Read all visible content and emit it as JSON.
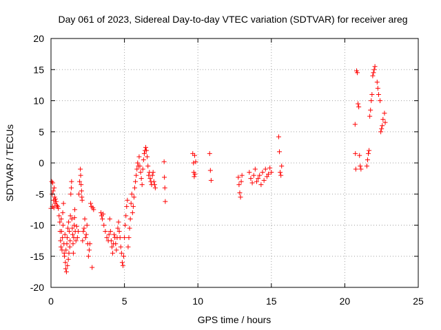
{
  "chart_data": {
    "type": "scatter",
    "title": "Day 061 of 2023, Sidereal Day-to-day VTEC variation (SDTVAR) for receiver areg",
    "xlabel": "GPS time / hours",
    "ylabel": "SDTVAR / TECUs",
    "xlim": [
      0,
      25
    ],
    "ylim": [
      -20,
      20
    ],
    "xticks": [
      0,
      5,
      10,
      15,
      20,
      25
    ],
    "yticks": [
      -20,
      -15,
      -10,
      -5,
      0,
      5,
      10,
      15,
      20
    ],
    "grid": true,
    "marker": "+",
    "color": "#ff0000",
    "series": [
      {
        "name": "SDTVAR",
        "points": [
          [
            0.0,
            -7.3
          ],
          [
            0.05,
            -3.0
          ],
          [
            0.08,
            -5.0
          ],
          [
            0.1,
            -7.0
          ],
          [
            0.12,
            -3.2
          ],
          [
            0.15,
            -4.5
          ],
          [
            0.18,
            -6.0
          ],
          [
            0.2,
            -7.2
          ],
          [
            0.22,
            -4.0
          ],
          [
            0.25,
            -5.5
          ],
          [
            0.28,
            -6.5
          ],
          [
            0.3,
            -5.8
          ],
          [
            0.35,
            -6.2
          ],
          [
            0.4,
            -6.8
          ],
          [
            0.45,
            -7.0
          ],
          [
            0.5,
            -7.3
          ],
          [
            0.55,
            -8.5
          ],
          [
            0.6,
            -9.5
          ],
          [
            0.62,
            -11.0
          ],
          [
            0.65,
            -12.5
          ],
          [
            0.68,
            -13.5
          ],
          [
            0.7,
            -9.0
          ],
          [
            0.72,
            -11.0
          ],
          [
            0.75,
            -14.0
          ],
          [
            0.78,
            -12.0
          ],
          [
            0.8,
            -8.0
          ],
          [
            0.82,
            -10.0
          ],
          [
            0.85,
            -6.5
          ],
          [
            0.88,
            -13.0
          ],
          [
            0.9,
            -14.5
          ],
          [
            0.92,
            -15.0
          ],
          [
            0.95,
            -11.5
          ],
          [
            0.98,
            -16.0
          ],
          [
            1.0,
            -17.0
          ],
          [
            1.02,
            -14.0
          ],
          [
            1.05,
            -17.5
          ],
          [
            1.08,
            -13.0
          ],
          [
            1.1,
            -12.0
          ],
          [
            1.12,
            -16.5
          ],
          [
            1.15,
            -10.5
          ],
          [
            1.18,
            -15.5
          ],
          [
            1.2,
            -9.5
          ],
          [
            1.22,
            -14.5
          ],
          [
            1.25,
            -11.0
          ],
          [
            1.28,
            -13.5
          ],
          [
            1.3,
            -12.5
          ],
          [
            1.32,
            -8.5
          ],
          [
            1.35,
            -5.0
          ],
          [
            1.38,
            -4.0
          ],
          [
            1.4,
            -3.0
          ],
          [
            1.42,
            -9.0
          ],
          [
            1.45,
            -10.5
          ],
          [
            1.48,
            -11.5
          ],
          [
            1.5,
            -13.0
          ],
          [
            1.52,
            -14.5
          ],
          [
            1.55,
            -12.0
          ],
          [
            1.58,
            -10.0
          ],
          [
            1.6,
            -8.8
          ],
          [
            1.62,
            -7.5
          ],
          [
            1.65,
            -11.0
          ],
          [
            1.7,
            -12.5
          ],
          [
            1.75,
            -10.2
          ],
          [
            1.8,
            -12.0
          ],
          [
            1.85,
            -11.0
          ],
          [
            1.9,
            -5.0
          ],
          [
            1.95,
            -3.0
          ],
          [
            2.0,
            -1.0
          ],
          [
            2.02,
            -2.0
          ],
          [
            2.05,
            -3.5
          ],
          [
            2.08,
            -4.5
          ],
          [
            2.1,
            -5.5
          ],
          [
            2.12,
            -6.0
          ],
          [
            2.15,
            -12.5
          ],
          [
            2.2,
            -11.0
          ],
          [
            2.25,
            -10.5
          ],
          [
            2.3,
            -9.0
          ],
          [
            2.35,
            -12.0
          ],
          [
            2.4,
            -11.5
          ],
          [
            2.45,
            -10.0
          ],
          [
            2.5,
            -13.0
          ],
          [
            2.55,
            -15.0
          ],
          [
            2.6,
            -14.0
          ],
          [
            2.65,
            -13.0
          ],
          [
            2.7,
            -6.5
          ],
          [
            2.75,
            -7.0
          ],
          [
            2.8,
            -16.8
          ],
          [
            2.85,
            -7.2
          ],
          [
            2.9,
            -7.5
          ],
          [
            3.4,
            -8.0
          ],
          [
            3.45,
            -8.5
          ],
          [
            3.5,
            -9.0
          ],
          [
            3.55,
            -8.2
          ],
          [
            3.6,
            -10.0
          ],
          [
            3.7,
            -11.0
          ],
          [
            3.8,
            -12.0
          ],
          [
            3.9,
            -12.5
          ],
          [
            3.95,
            -11.5
          ],
          [
            4.0,
            -9.0
          ],
          [
            4.05,
            -11.0
          ],
          [
            4.1,
            -12.5
          ],
          [
            4.15,
            -13.5
          ],
          [
            4.2,
            -14.5
          ],
          [
            4.25,
            -13.0
          ],
          [
            4.3,
            -11.5
          ],
          [
            4.35,
            -12.0
          ],
          [
            4.4,
            -13.0
          ],
          [
            4.45,
            -14.0
          ],
          [
            4.5,
            -12.0
          ],
          [
            4.55,
            -10.5
          ],
          [
            4.6,
            -9.5
          ],
          [
            4.65,
            -11.0
          ],
          [
            4.7,
            -12.0
          ],
          [
            4.75,
            -13.5
          ],
          [
            4.8,
            -14.5
          ],
          [
            4.85,
            -16.0
          ],
          [
            4.9,
            -16.5
          ],
          [
            4.95,
            -15.0
          ],
          [
            5.0,
            -12.0
          ],
          [
            5.05,
            -10.0
          ],
          [
            5.1,
            -8.5
          ],
          [
            5.15,
            -7.0
          ],
          [
            5.2,
            -6.0
          ],
          [
            5.25,
            -13.5
          ],
          [
            5.3,
            -12.0
          ],
          [
            5.35,
            -10.5
          ],
          [
            5.4,
            -9.0
          ],
          [
            5.45,
            -6.5
          ],
          [
            5.5,
            -5.0
          ],
          [
            5.55,
            -8.0
          ],
          [
            5.6,
            -7.0
          ],
          [
            5.65,
            -5.5
          ],
          [
            5.7,
            -4.0
          ],
          [
            5.75,
            -3.0
          ],
          [
            5.8,
            -2.0
          ],
          [
            5.85,
            -1.0
          ],
          [
            5.9,
            0.0
          ],
          [
            5.95,
            -0.5
          ],
          [
            6.0,
            1.0
          ],
          [
            6.05,
            -0.5
          ],
          [
            6.1,
            -1.5
          ],
          [
            6.15,
            -2.5
          ],
          [
            6.2,
            -3.5
          ],
          [
            6.25,
            -1.0
          ],
          [
            6.3,
            0.5
          ],
          [
            6.35,
            1.5
          ],
          [
            6.4,
            2.0
          ],
          [
            6.45,
            2.5
          ],
          [
            6.5,
            2.0
          ],
          [
            6.55,
            1.0
          ],
          [
            6.6,
            -0.5
          ],
          [
            6.65,
            -2.0
          ],
          [
            6.7,
            -1.5
          ],
          [
            6.75,
            -2.5
          ],
          [
            6.8,
            -3.0
          ],
          [
            6.85,
            -3.5
          ],
          [
            6.9,
            -2.0
          ],
          [
            6.95,
            -1.5
          ],
          [
            7.0,
            -3.0
          ],
          [
            7.05,
            -3.5
          ],
          [
            7.1,
            -4.0
          ],
          [
            7.7,
            0.2
          ],
          [
            7.72,
            -2.3
          ],
          [
            7.75,
            -4.0
          ],
          [
            7.78,
            -6.2
          ],
          [
            9.65,
            1.5
          ],
          [
            9.7,
            0.0
          ],
          [
            9.72,
            -1.5
          ],
          [
            9.75,
            -2.2
          ],
          [
            9.78,
            1.2
          ],
          [
            9.8,
            -1.8
          ],
          [
            9.85,
            0.2
          ],
          [
            10.8,
            1.5
          ],
          [
            10.85,
            -1.2
          ],
          [
            10.9,
            -2.8
          ],
          [
            12.75,
            -2.3
          ],
          [
            12.8,
            -3.5
          ],
          [
            12.85,
            -4.8
          ],
          [
            12.9,
            -5.5
          ],
          [
            12.95,
            -3.0
          ],
          [
            13.0,
            -2.0
          ],
          [
            13.5,
            -1.5
          ],
          [
            13.6,
            -2.5
          ],
          [
            13.7,
            -3.2
          ],
          [
            13.8,
            -2.0
          ],
          [
            13.9,
            -1.0
          ],
          [
            14.0,
            -3.0
          ],
          [
            14.1,
            -2.5
          ],
          [
            14.2,
            -2.0
          ],
          [
            14.3,
            -3.5
          ],
          [
            14.4,
            -1.5
          ],
          [
            14.5,
            -2.8
          ],
          [
            14.6,
            -1.0
          ],
          [
            14.7,
            -2.2
          ],
          [
            14.8,
            -1.8
          ],
          [
            14.9,
            -0.8
          ],
          [
            15.0,
            -1.5
          ],
          [
            15.5,
            4.2
          ],
          [
            15.55,
            1.8
          ],
          [
            15.6,
            -1.5
          ],
          [
            15.65,
            -2.0
          ],
          [
            15.7,
            -0.5
          ],
          [
            20.7,
            6.2
          ],
          [
            20.72,
            1.5
          ],
          [
            20.75,
            -1.0
          ],
          [
            20.8,
            14.8
          ],
          [
            20.85,
            14.5
          ],
          [
            20.9,
            9.5
          ],
          [
            20.95,
            9.0
          ],
          [
            21.0,
            1.2
          ],
          [
            21.05,
            -0.5
          ],
          [
            21.1,
            -1.0
          ],
          [
            21.5,
            -0.5
          ],
          [
            21.55,
            0.5
          ],
          [
            21.6,
            1.5
          ],
          [
            21.65,
            2.0
          ],
          [
            21.7,
            7.5
          ],
          [
            21.75,
            8.5
          ],
          [
            21.8,
            10.0
          ],
          [
            21.85,
            11.0
          ],
          [
            21.9,
            14.0
          ],
          [
            21.95,
            14.5
          ],
          [
            22.0,
            15.0
          ],
          [
            22.05,
            15.5
          ],
          [
            22.2,
            13.0
          ],
          [
            22.25,
            12.0
          ],
          [
            22.3,
            11.0
          ],
          [
            22.4,
            10.0
          ],
          [
            22.45,
            5.0
          ],
          [
            22.5,
            5.5
          ],
          [
            22.55,
            6.0
          ],
          [
            22.6,
            7.0
          ],
          [
            22.7,
            8.0
          ],
          [
            22.75,
            6.5
          ]
        ]
      }
    ]
  }
}
